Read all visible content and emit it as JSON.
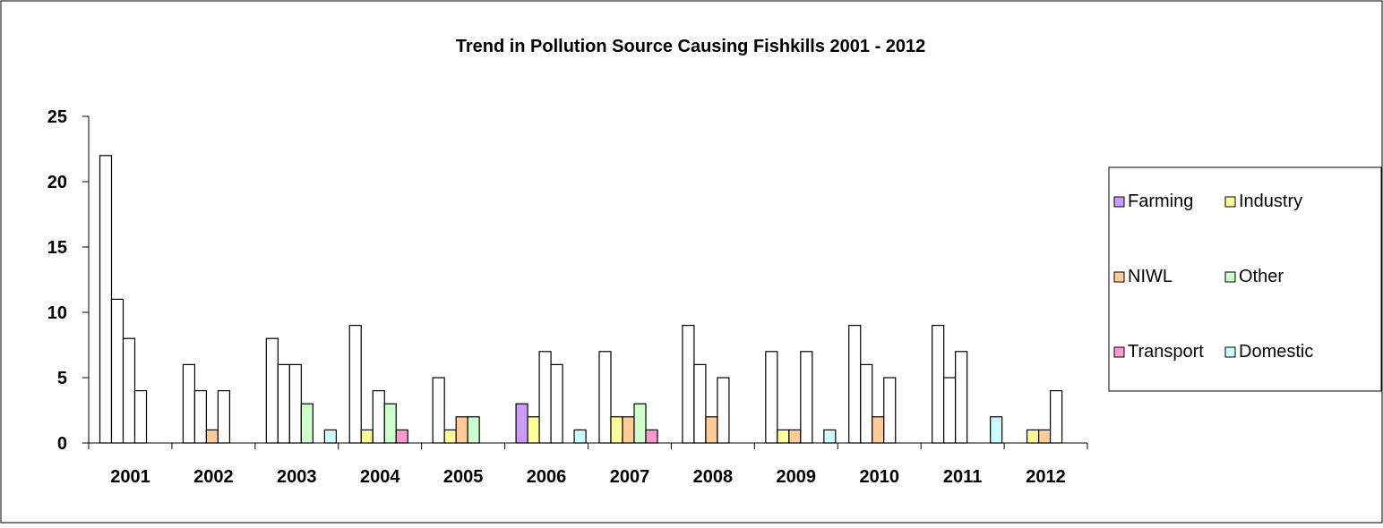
{
  "chart_data": {
    "type": "bar",
    "title": "Trend in Pollution Source Causing Fishkills 2001 - 2012",
    "xlabel": "",
    "ylabel": "",
    "ylim": [
      0,
      25
    ],
    "yticks": [
      0,
      5,
      10,
      15,
      20,
      25
    ],
    "grid": false,
    "legend_position": "right",
    "categories": [
      "2001",
      "2002",
      "2003",
      "2004",
      "2005",
      "2006",
      "2007",
      "2008",
      "2009",
      "2010",
      "2011",
      "2012"
    ],
    "series": [
      {
        "name": "Farming",
        "color": "#cc99ff",
        "values": [
          22,
          6,
          8,
          9,
          5,
          3,
          7,
          9,
          7,
          9,
          9,
          0
        ]
      },
      {
        "name": "Industry",
        "color": "#ffff99",
        "values": [
          11,
          4,
          6,
          1,
          1,
          2,
          2,
          6,
          1,
          6,
          5,
          1
        ]
      },
      {
        "name": "NIWL",
        "color": "#ffcc99",
        "values": [
          8,
          1,
          6,
          4,
          2,
          7,
          2,
          2,
          1,
          2,
          7,
          1
        ]
      },
      {
        "name": "Other",
        "color": "#ccffcc",
        "values": [
          4,
          4,
          3,
          3,
          2,
          6,
          3,
          5,
          7,
          5,
          0,
          4
        ]
      },
      {
        "name": "Transport",
        "color": "#ff99cc",
        "values": [
          0,
          0,
          0,
          1,
          0,
          0,
          1,
          0,
          0,
          0,
          0,
          0
        ]
      },
      {
        "name": "Domestic",
        "color": "#ccffff",
        "values": [
          0,
          0,
          1,
          0,
          0,
          1,
          0,
          0,
          1,
          0,
          2,
          0
        ]
      }
    ],
    "bar_fills": [
      [
        "#ffffff",
        "#ffffff",
        "#ffffff",
        "#ffffff",
        "#ff99cc",
        "#ccffff"
      ],
      [
        "#ffffff",
        "#ffffff",
        "#ffcc99",
        "#ffffff",
        "#ff99cc",
        "#ccffff"
      ],
      [
        "#ffffff",
        "#ffffff",
        "#ffffff",
        "#ccffcc",
        "#ff99cc",
        "#ccffff"
      ],
      [
        "#ffffff",
        "#ffff99",
        "#ffffff",
        "#ccffcc",
        "#ff99cc",
        "#ccffff"
      ],
      [
        "#ffffff",
        "#ffff99",
        "#ffcc99",
        "#ccffcc",
        "#ff99cc",
        "#ccffff"
      ],
      [
        "#cc99ff",
        "#ffff99",
        "#ffffff",
        "#ffffff",
        "#ff99cc",
        "#ccffff"
      ],
      [
        "#ffffff",
        "#ffff99",
        "#ffcc99",
        "#ccffcc",
        "#ff99cc",
        "#ccffff"
      ],
      [
        "#ffffff",
        "#ffffff",
        "#ffcc99",
        "#ffffff",
        "#ff99cc",
        "#ccffff"
      ],
      [
        "#ffffff",
        "#ffff99",
        "#ffcc99",
        "#ffffff",
        "#ff99cc",
        "#ccffff"
      ],
      [
        "#ffffff",
        "#ffffff",
        "#ffcc99",
        "#ffffff",
        "#ff99cc",
        "#ccffff"
      ],
      [
        "#ffffff",
        "#ffffff",
        "#ffffff",
        "#ffffff",
        "#ff99cc",
        "#ccffff"
      ],
      [
        "#ffffff",
        "#ffff99",
        "#ffcc99",
        "#ffffff",
        "#ff99cc",
        "#ccffff"
      ]
    ]
  }
}
